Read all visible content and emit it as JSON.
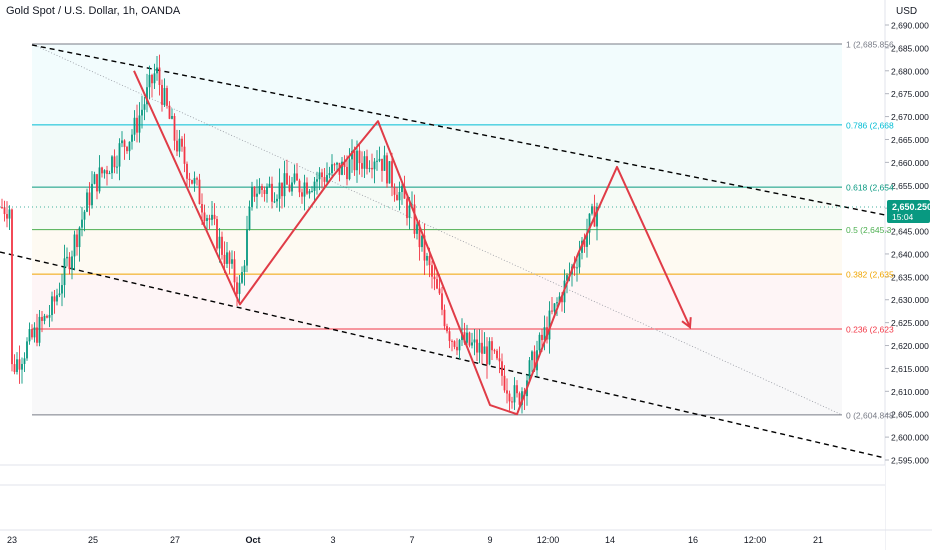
{
  "header": {
    "title": "Gold Spot / U.S. Dollar, 1h, OANDA"
  },
  "price_axis": {
    "currency": "USD",
    "ticks": [
      "2,690.000",
      "2,685.000",
      "2,680.000",
      "2,675.000",
      "2,670.000",
      "2,665.000",
      "2,660.000",
      "2,655.000",
      "2,650.000",
      "2,645.000",
      "2,640.000",
      "2,635.000",
      "2,630.000",
      "2,625.000",
      "2,620.000",
      "2,615.000",
      "2,610.000",
      "2,605.000",
      "2,600.000",
      "2,595.000"
    ],
    "current_price_label": "2,650.250",
    "countdown_label": "15:04"
  },
  "time_axis": {
    "ticks": [
      "23",
      "25",
      "27",
      "Oct",
      "3",
      "7",
      "9",
      "12:00",
      "14",
      "16",
      "12:00",
      "21"
    ]
  },
  "fib_levels": [
    {
      "label": "1 (2,685.856",
      "price": 2685.856,
      "color": "#787b86"
    },
    {
      "label": "0.786 (2,668",
      "price": 2668.2,
      "color": "#00bcd4"
    },
    {
      "label": "0.618 (2,654",
      "price": 2654.6,
      "color": "#089981"
    },
    {
      "label": "0.5 (2,645.3",
      "price": 2645.3,
      "color": "#4caf50"
    },
    {
      "label": "0.382 (2,635",
      "price": 2635.6,
      "color": "#f0a500"
    },
    {
      "label": "0.236 (2,623",
      "price": 2623.6,
      "color": "#f23645"
    },
    {
      "label": "0 (2,604.848",
      "price": 2604.848,
      "color": "#787b86"
    }
  ],
  "colors": {
    "up": "#089981",
    "down": "#f23645",
    "projection": "#e03c47",
    "price_tag": "#089981",
    "trend": "#000000"
  },
  "chart_data": {
    "type": "candlestick",
    "symbol": "Gold Spot / U.S. Dollar",
    "timeframe": "1h",
    "ylim": [
      2594,
      2691
    ],
    "current_price": 2650.25,
    "close_path": [
      {
        "x": "Sep 23",
        "y": 2615
      },
      {
        "x": "Sep 24",
        "y": 2628
      },
      {
        "x": "Sep 25",
        "y": 2655
      },
      {
        "x": "Sep 26",
        "y": 2667
      },
      {
        "x": "Sep 26 (high)",
        "y": 2680
      },
      {
        "x": "Sep 27",
        "y": 2665
      },
      {
        "x": "Sep 30",
        "y": 2632
      },
      {
        "x": "Oct 1",
        "y": 2654
      },
      {
        "x": "Oct 2",
        "y": 2655
      },
      {
        "x": "Oct 3",
        "y": 2658
      },
      {
        "x": "Oct 4",
        "y": 2662
      },
      {
        "x": "Oct 7",
        "y": 2648
      },
      {
        "x": "Oct 8",
        "y": 2622
      },
      {
        "x": "Oct 9",
        "y": 2618
      },
      {
        "x": "Oct 10",
        "y": 2608
      },
      {
        "x": "Oct 11",
        "y": 2640
      },
      {
        "x": "Oct 11 (last)",
        "y": 2650.25
      }
    ],
    "projection_path": [
      {
        "x": "Sep 26",
        "y": 2680
      },
      {
        "x": "Sep 30",
        "y": 2629
      },
      {
        "x": "Oct 3",
        "y": 2657
      },
      {
        "x": "Oct 4",
        "y": 2669
      },
      {
        "x": "Oct 9",
        "y": 2607
      },
      {
        "x": "Oct 10",
        "y": 2605
      },
      {
        "x": "Oct 11",
        "y": 2640
      },
      {
        "x": "Oct 14",
        "y": 2659
      },
      {
        "x": "Oct 16",
        "y": 2624
      }
    ]
  }
}
